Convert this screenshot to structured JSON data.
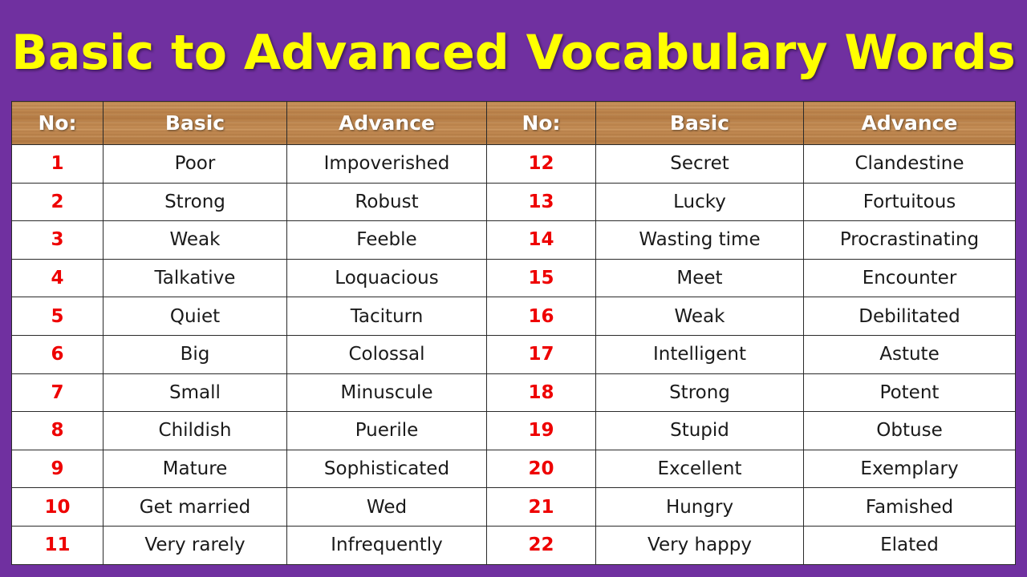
{
  "title": "Basic to Advanced Vocabulary Words",
  "colors": {
    "background": "#7030a0",
    "title": "#ffff00",
    "number": "#ee0000",
    "header_text": "#ffffff"
  },
  "headers": [
    "No:",
    "Basic",
    "Advance",
    "No:",
    "Basic",
    "Advance"
  ],
  "rows": [
    {
      "left": {
        "no": "1",
        "basic": "Poor",
        "advance": "Impoverished"
      },
      "right": {
        "no": "12",
        "basic": "Secret",
        "advance": "Clandestine"
      }
    },
    {
      "left": {
        "no": "2",
        "basic": "Strong",
        "advance": "Robust"
      },
      "right": {
        "no": "13",
        "basic": "Lucky",
        "advance": "Fortuitous"
      }
    },
    {
      "left": {
        "no": "3",
        "basic": "Weak",
        "advance": "Feeble"
      },
      "right": {
        "no": "14",
        "basic": "Wasting time",
        "advance": "Procrastinating"
      }
    },
    {
      "left": {
        "no": "4",
        "basic": "Talkative",
        "advance": "Loquacious"
      },
      "right": {
        "no": "15",
        "basic": "Meet",
        "advance": "Encounter"
      }
    },
    {
      "left": {
        "no": "5",
        "basic": "Quiet",
        "advance": "Taciturn"
      },
      "right": {
        "no": "16",
        "basic": "Weak",
        "advance": "Debilitated"
      }
    },
    {
      "left": {
        "no": "6",
        "basic": "Big",
        "advance": "Colossal"
      },
      "right": {
        "no": "17",
        "basic": "Intelligent",
        "advance": "Astute"
      }
    },
    {
      "left": {
        "no": "7",
        "basic": "Small",
        "advance": "Minuscule"
      },
      "right": {
        "no": "18",
        "basic": "Strong",
        "advance": "Potent"
      }
    },
    {
      "left": {
        "no": "8",
        "basic": "Childish",
        "advance": "Puerile"
      },
      "right": {
        "no": "19",
        "basic": "Stupid",
        "advance": "Obtuse"
      }
    },
    {
      "left": {
        "no": "9",
        "basic": "Mature",
        "advance": "Sophisticated"
      },
      "right": {
        "no": "20",
        "basic": "Excellent",
        "advance": "Exemplary"
      }
    },
    {
      "left": {
        "no": "10",
        "basic": "Get married",
        "advance": "Wed"
      },
      "right": {
        "no": "21",
        "basic": "Hungry",
        "advance": "Famished"
      }
    },
    {
      "left": {
        "no": "11",
        "basic": "Very rarely",
        "advance": "Infrequently"
      },
      "right": {
        "no": "22",
        "basic": "Very happy",
        "advance": "Elated"
      }
    }
  ]
}
